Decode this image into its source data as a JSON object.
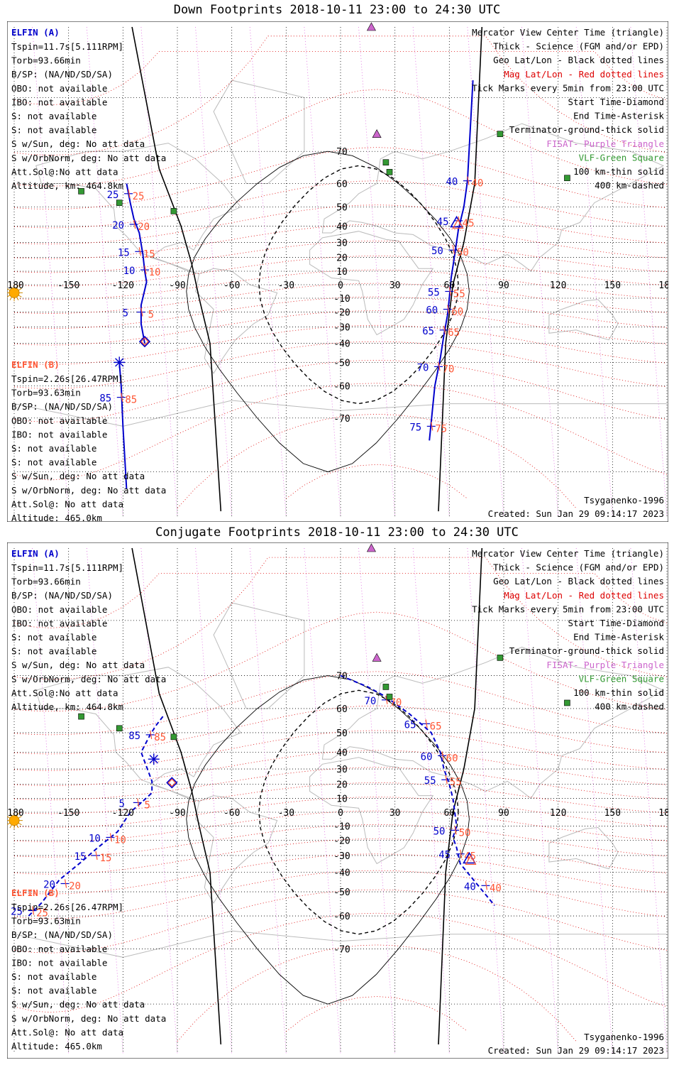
{
  "colors": {
    "elfin_a": "#0000cc",
    "elfin_b": "#ff5533",
    "mag": "#dd0000",
    "fisat": "#cc66cc",
    "vlf": "#339933",
    "grid": "#000000",
    "land": "#bbbbbb"
  },
  "icons": {
    "sun": "sun-icon",
    "fisat": "triangle-icon",
    "vlf": "square-icon"
  },
  "lon_ticks": [
    "180",
    "-150",
    "-120",
    "-90",
    "-60",
    "-30",
    "0",
    "30",
    "60",
    "90",
    "120",
    "150",
    "180"
  ],
  "lat_ticks": [
    "70",
    "60",
    "50",
    "40",
    "30",
    "20",
    "10",
    "0",
    "-10",
    "-20",
    "-30",
    "-40",
    "-50",
    "-60",
    "-70"
  ],
  "legend": [
    "Mercator View Center Time (triangle)",
    "Thick - Science (FGM and/or EPD)",
    "Geo Lat/Lon - Black dotted lines",
    "Mag Lat/Lon - Red dotted lines",
    "Tick Marks every 5min from 23:00 UTC",
    "Start Time-Diamond",
    "End Time-Asterisk",
    "Terminator-ground-thick solid",
    "FISAT- Purple Triangle",
    "VLF-Green Square",
    "100 km-thin solid",
    "400 km-dashed"
  ],
  "model": "Tsyganenko-1996",
  "created": "Created: Sun Jan 29 09:14:17 2023",
  "elfin_a": {
    "name": "ELFIN (A)",
    "lines": [
      "Tspin=11.7s[5.111RPM]",
      "Torb=93.66min",
      "B/SP: (NA/ND/SD/SA)",
      "OBO: not available",
      "IBO: not available",
      "S: not available",
      "S: not available",
      "S w/Sun, deg: No att data",
      "S w/OrbNorm, deg: No att data",
      "Att.Sol@:No att data",
      "Altitude, km: 464.8km"
    ]
  },
  "elfin_b": {
    "name": "ELFIN (B)",
    "lines": [
      "Tspin=2.26s[26.47RPM]",
      "Torb=93.63min",
      "B/SP: (NA/ND/SD/SA)",
      "OBO: not available",
      "IBO: not available",
      "S: not available",
      "S: not available",
      "S w/Sun, deg: No att data",
      "S w/OrbNorm, deg: No att data",
      "Att.Sol@: No att data",
      "Altitude: 465.0km"
    ]
  },
  "panels": [
    {
      "title": "Down Footprints 2018-10-11 23:00 to 24:30 UTC",
      "track_a_style": "solid",
      "track_a_1": [
        [
          -118,
          60
        ],
        [
          -116,
          52
        ],
        [
          -114,
          44
        ],
        [
          -111,
          36
        ],
        [
          -109,
          22
        ],
        [
          -108,
          10
        ],
        [
          -107,
          2
        ],
        [
          -110,
          -15
        ],
        [
          -110,
          -28
        ],
        [
          -108,
          -40
        ]
      ],
      "track_a_2": [
        [
          73,
          82
        ],
        [
          70,
          61
        ],
        [
          68,
          50
        ],
        [
          65,
          38
        ],
        [
          63,
          22
        ],
        [
          61,
          5
        ],
        [
          60,
          -10
        ],
        [
          59,
          -22
        ],
        [
          57,
          -35
        ],
        [
          55,
          -48
        ],
        [
          52,
          -60
        ],
        [
          49,
          -75
        ]
      ],
      "ticks_a": [
        {
          "lon": -117,
          "lat": 56,
          "blue": "25",
          "red": "25"
        },
        {
          "lon": -114,
          "lat": 41,
          "blue": "20",
          "red": "20"
        },
        {
          "lon": -111,
          "lat": 24,
          "blue": "15",
          "red": "15"
        },
        {
          "lon": -108,
          "lat": 11,
          "blue": "10",
          "red": "10"
        },
        {
          "lon": -110,
          "lat": -20,
          "blue": "5",
          "red": "5"
        },
        {
          "lon": 70,
          "lat": 61,
          "blue": "40",
          "red": "40"
        },
        {
          "lon": 65,
          "lat": 43,
          "blue": "45",
          "red": "45"
        },
        {
          "lon": 62,
          "lat": 25,
          "blue": "50",
          "red": "50"
        },
        {
          "lon": 60,
          "lat": -5,
          "blue": "55",
          "red": "55"
        },
        {
          "lon": 59,
          "lat": -18,
          "blue": "60",
          "red": "60"
        },
        {
          "lon": 57,
          "lat": -32,
          "blue": "65",
          "red": "65"
        },
        {
          "lon": 54,
          "lat": -52,
          "blue": "70",
          "red": "70"
        },
        {
          "lon": 50,
          "lat": -72,
          "blue": "75",
          "red": "75"
        }
      ],
      "track_b": [
        [
          -122,
          -50
        ],
        [
          -121,
          -60
        ],
        [
          -120,
          -72
        ],
        [
          -118,
          -82
        ]
      ],
      "ticks_b": [
        {
          "lon": -121,
          "lat": -64,
          "blue": "85",
          "red": "85"
        }
      ],
      "start_a": {
        "lon": -108,
        "lat": -39
      },
      "end_b": {
        "lon": -122,
        "lat": -50
      },
      "center_a": {
        "lon": 64,
        "lat": 42
      },
      "fisat": [
        [
          17,
          86
        ],
        [
          20,
          74
        ]
      ],
      "vlf": [
        [
          -143,
          57
        ],
        [
          -122,
          52
        ],
        [
          -92,
          48
        ],
        [
          25,
          67
        ],
        [
          27,
          64
        ],
        [
          88,
          74
        ],
        [
          125,
          62
        ]
      ]
    },
    {
      "title": "Conjugate Footprints 2018-10-11 23:00 to 24:30 UTC",
      "track_a_style": "dashed",
      "track_a_1": [
        [
          -98,
          57
        ],
        [
          -102,
          53
        ],
        [
          -105,
          49
        ],
        [
          -110,
          40
        ],
        [
          -104,
          22
        ],
        [
          -104,
          14
        ],
        [
          -109,
          8
        ],
        [
          -116,
          0
        ],
        [
          -123,
          -14
        ],
        [
          -134,
          -25
        ],
        [
          -143,
          -34
        ],
        [
          -155,
          -44
        ],
        [
          -165,
          -55
        ],
        [
          -172,
          -60
        ]
      ],
      "track_a_2": [
        [
          0,
          70
        ],
        [
          15,
          67
        ],
        [
          25,
          64
        ],
        [
          38,
          58
        ],
        [
          50,
          50
        ],
        [
          55,
          40
        ],
        [
          57,
          30
        ],
        [
          60,
          20
        ],
        [
          62,
          10
        ],
        [
          63,
          0
        ],
        [
          64,
          -10
        ],
        [
          62,
          -18
        ],
        [
          64,
          -25
        ],
        [
          66,
          -35
        ],
        [
          75,
          -46
        ],
        [
          85,
          -56
        ]
      ],
      "ticks_a": [
        {
          "lon": -105,
          "lat": 49,
          "blue": "85",
          "red": "85"
        },
        {
          "lon": -112,
          "lat": 7,
          "blue": "5",
          "red": "5"
        },
        {
          "lon": -127,
          "lat": -18,
          "blue": "10",
          "red": "10"
        },
        {
          "lon": -135,
          "lat": -30,
          "blue": "15",
          "red": "15"
        },
        {
          "lon": -152,
          "lat": -46,
          "blue": "20",
          "red": "20"
        },
        {
          "lon": -170,
          "lat": -58,
          "blue": "25",
          "red": "25"
        },
        {
          "lon": 25,
          "lat": 63,
          "blue": "70",
          "red": "70"
        },
        {
          "lon": 47,
          "lat": 54,
          "blue": "65",
          "red": "65"
        },
        {
          "lon": 56,
          "lat": 38,
          "blue": "60",
          "red": "60"
        },
        {
          "lon": 58,
          "lat": 23,
          "blue": "55",
          "red": "55"
        },
        {
          "lon": 63,
          "lat": -13,
          "blue": "50",
          "red": "50"
        },
        {
          "lon": 66,
          "lat": -29,
          "blue": "45",
          "red": "45"
        },
        {
          "lon": 80,
          "lat": -47,
          "blue": "40",
          "red": "40"
        }
      ],
      "track_b": [],
      "ticks_b": [],
      "start_a": {
        "lon": -93,
        "lat": 21
      },
      "end_b": {
        "lon": -103,
        "lat": 36
      },
      "center_a": {
        "lon": 71,
        "lat": -32
      },
      "fisat": [
        [
          17,
          86
        ],
        [
          20,
          74
        ]
      ],
      "vlf": [
        [
          -143,
          57
        ],
        [
          -122,
          52
        ],
        [
          -92,
          48
        ],
        [
          25,
          67
        ],
        [
          27,
          64
        ],
        [
          88,
          74
        ],
        [
          125,
          62
        ]
      ]
    }
  ]
}
